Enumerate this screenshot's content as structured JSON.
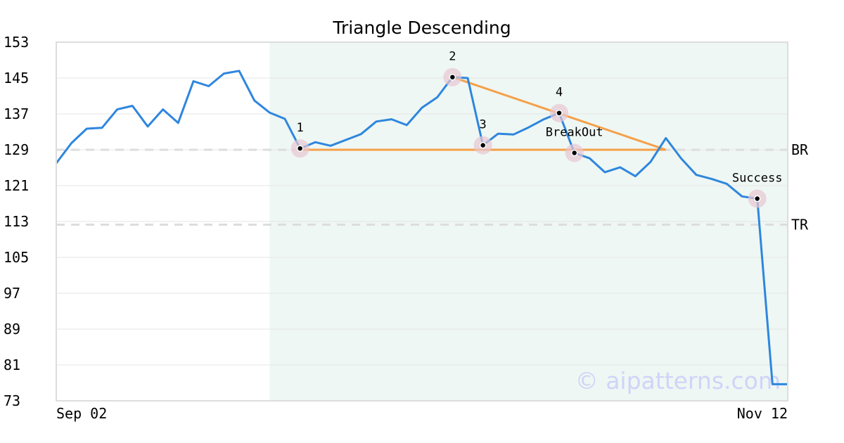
{
  "chart_data": {
    "type": "line",
    "title": "Triangle Descending",
    "watermark": "© aipatterns.com",
    "y_ticks": [
      153,
      145,
      137,
      129,
      121,
      113,
      105,
      97,
      89,
      81,
      73
    ],
    "ylim": [
      73,
      153
    ],
    "x_tick_labels": [
      {
        "label": "Sep 02",
        "index": 0
      },
      {
        "label": "Nov 12",
        "index": 48
      }
    ],
    "grid": true,
    "series": [
      {
        "color": "#2e86de",
        "values": [
          126,
          130.5,
          133.7,
          133.9,
          138,
          138.8,
          134.2,
          138,
          135,
          144.3,
          143.2,
          146,
          146.6,
          140,
          137.3,
          135.9,
          129.3,
          130.7,
          129.9,
          131.2,
          132.5,
          135.3,
          135.8,
          134.5,
          138.4,
          140.7,
          145.2,
          145,
          130,
          132.6,
          132.4,
          134,
          135.8,
          137.2,
          128.3,
          127.1,
          124,
          125.1,
          123.1,
          126.3,
          131.6,
          127.1,
          123.4,
          122.5,
          121.4,
          118.6,
          118.1,
          76.7,
          76.7
        ]
      }
    ],
    "highlight_region": {
      "start_index": 14,
      "end_index": 48,
      "color": "#eef7f3"
    },
    "pattern_lines": {
      "color": "#f5a04a",
      "lines": [
        [
          {
            "x": 16,
            "y": 129
          },
          {
            "x": 40,
            "y": 129
          }
        ],
        [
          {
            "x": 26,
            "y": 145.2
          },
          {
            "x": 40,
            "y": 129
          }
        ]
      ]
    },
    "horizontal_levels": [
      {
        "label": "BR",
        "value": 129
      },
      {
        "label": "TR",
        "value": 112.3
      }
    ],
    "points": [
      {
        "label": "1",
        "x": 16,
        "y": 129.3
      },
      {
        "label": "2",
        "x": 26,
        "y": 145.2
      },
      {
        "label": "3",
        "x": 28,
        "y": 130
      },
      {
        "label": "4",
        "x": 33,
        "y": 137.2
      },
      {
        "label": "BreakOut",
        "x": 34,
        "y": 128.3
      },
      {
        "label": "Success",
        "x": 46,
        "y": 118.1
      }
    ]
  }
}
